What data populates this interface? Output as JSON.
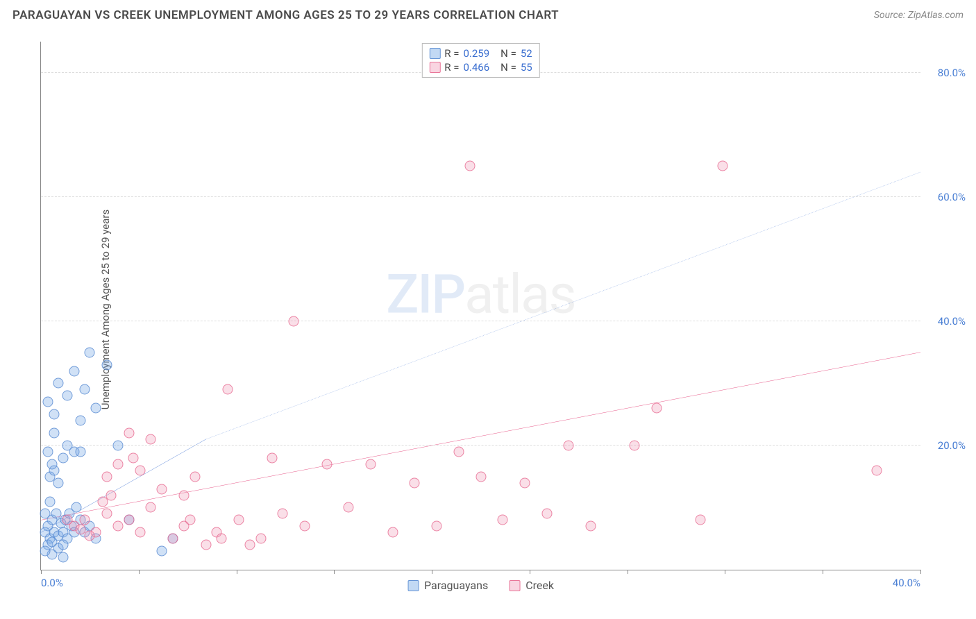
{
  "title": "PARAGUAYAN VS CREEK UNEMPLOYMENT AMONG AGES 25 TO 29 YEARS CORRELATION CHART",
  "source_label": "Source:",
  "source_name": "ZipAtlas.com",
  "ylabel": "Unemployment Among Ages 25 to 29 years",
  "watermark_part1": "ZIP",
  "watermark_part2": "atlas",
  "chart": {
    "type": "scatter",
    "xlim": [
      0,
      40
    ],
    "ylim": [
      0,
      85
    ],
    "xticks": [
      0,
      4.44,
      8.89,
      13.33,
      17.78,
      22.22,
      26.67,
      31.11,
      35.56,
      40
    ],
    "yticks": [
      20,
      40,
      60,
      80
    ],
    "ytick_labels": [
      "20.0%",
      "40.0%",
      "60.0%",
      "80.0%"
    ],
    "x_origin_label": "0.0%",
    "x_max_label": "40.0%",
    "grid_color": "#dddddd",
    "background_color": "#ffffff",
    "series": [
      {
        "name": "Paraguayans",
        "fill_color": "rgba(120,170,230,0.35)",
        "stroke_color": "rgba(90,140,210,0.8)",
        "r_value": "0.259",
        "n_value": "52",
        "trend": {
          "x1": 0,
          "y1": 6,
          "x2": 7.5,
          "y2": 21,
          "solid_to_x": 7.5,
          "dash_to_x": 40,
          "dash_to_y": 64,
          "color": "#3b6fd0",
          "width": 2
        },
        "points": [
          [
            0.2,
            6
          ],
          [
            0.3,
            7
          ],
          [
            0.4,
            5
          ],
          [
            0.5,
            8
          ],
          [
            0.6,
            6
          ],
          [
            0.7,
            9
          ],
          [
            0.8,
            5.5
          ],
          [
            0.9,
            7.5
          ],
          [
            1.0,
            6
          ],
          [
            1.1,
            8
          ],
          [
            1.2,
            5
          ],
          [
            1.3,
            9
          ],
          [
            1.4,
            7
          ],
          [
            1.5,
            6
          ],
          [
            1.6,
            10
          ],
          [
            1.8,
            8
          ],
          [
            2.0,
            6
          ],
          [
            2.2,
            7
          ],
          [
            2.5,
            5
          ],
          [
            0.3,
            4
          ],
          [
            0.5,
            4.5
          ],
          [
            0.8,
            3.5
          ],
          [
            1.0,
            4
          ],
          [
            0.4,
            15
          ],
          [
            0.6,
            16
          ],
          [
            0.5,
            17
          ],
          [
            1.0,
            18
          ],
          [
            1.2,
            20
          ],
          [
            1.5,
            19
          ],
          [
            0.8,
            14
          ],
          [
            0.3,
            27
          ],
          [
            0.6,
            25
          ],
          [
            0.8,
            30
          ],
          [
            1.2,
            28
          ],
          [
            1.5,
            32
          ],
          [
            2.0,
            29
          ],
          [
            2.2,
            35
          ],
          [
            2.5,
            26
          ],
          [
            3.0,
            33
          ],
          [
            1.8,
            24
          ],
          [
            3.5,
            20
          ],
          [
            4.0,
            8
          ],
          [
            1.0,
            2
          ],
          [
            0.5,
            2.5
          ],
          [
            0.2,
            3
          ],
          [
            6.0,
            5
          ],
          [
            5.5,
            3
          ],
          [
            1.8,
            19
          ],
          [
            0.3,
            19
          ],
          [
            0.6,
            22
          ],
          [
            0.2,
            9
          ],
          [
            0.4,
            11
          ]
        ]
      },
      {
        "name": "Creek",
        "fill_color": "rgba(240,150,180,0.3)",
        "stroke_color": "rgba(230,100,140,0.75)",
        "r_value": "0.466",
        "n_value": "55",
        "trend": {
          "x1": 0,
          "y1": 8,
          "x2": 40,
          "y2": 35,
          "color": "#e85b8a",
          "width": 2.5
        },
        "points": [
          [
            1.5,
            7
          ],
          [
            2.0,
            8
          ],
          [
            2.5,
            6
          ],
          [
            3.0,
            9
          ],
          [
            3.5,
            7
          ],
          [
            4.0,
            8
          ],
          [
            4.5,
            6
          ],
          [
            5.0,
            10
          ],
          [
            5.5,
            13
          ],
          [
            6.0,
            5
          ],
          [
            6.5,
            7
          ],
          [
            7.0,
            15
          ],
          [
            7.5,
            4
          ],
          [
            8.0,
            6
          ],
          [
            9.0,
            8
          ],
          [
            10.0,
            5
          ],
          [
            10.5,
            18
          ],
          [
            11.0,
            9
          ],
          [
            12.0,
            7
          ],
          [
            13.0,
            17
          ],
          [
            14.0,
            10
          ],
          [
            15.0,
            17
          ],
          [
            16.0,
            6
          ],
          [
            17.0,
            14
          ],
          [
            18.0,
            7
          ],
          [
            19.0,
            19
          ],
          [
            20.0,
            15
          ],
          [
            21.0,
            8
          ],
          [
            22.0,
            14
          ],
          [
            23.0,
            9
          ],
          [
            24.0,
            20
          ],
          [
            25.0,
            7
          ],
          [
            28.0,
            26
          ],
          [
            30.0,
            8
          ],
          [
            38.0,
            16
          ],
          [
            3.0,
            15
          ],
          [
            3.5,
            17
          ],
          [
            4.0,
            22
          ],
          [
            4.5,
            16
          ],
          [
            3.2,
            12
          ],
          [
            2.8,
            11
          ],
          [
            8.5,
            29
          ],
          [
            11.5,
            40
          ],
          [
            19.5,
            65
          ],
          [
            31.0,
            65
          ],
          [
            2.2,
            5.5
          ],
          [
            1.8,
            6.5
          ],
          [
            1.2,
            8
          ],
          [
            6.5,
            12
          ],
          [
            5.0,
            21
          ],
          [
            4.2,
            18
          ],
          [
            6.8,
            8
          ],
          [
            8.2,
            5
          ],
          [
            9.5,
            4
          ],
          [
            27.0,
            20
          ]
        ]
      }
    ]
  },
  "legend_top": {
    "r_label": "R =",
    "n_label": "N ="
  },
  "colors": {
    "tick_text": "#4a7fd4",
    "title_text": "#4a4a4a",
    "axis_line": "#888888"
  }
}
